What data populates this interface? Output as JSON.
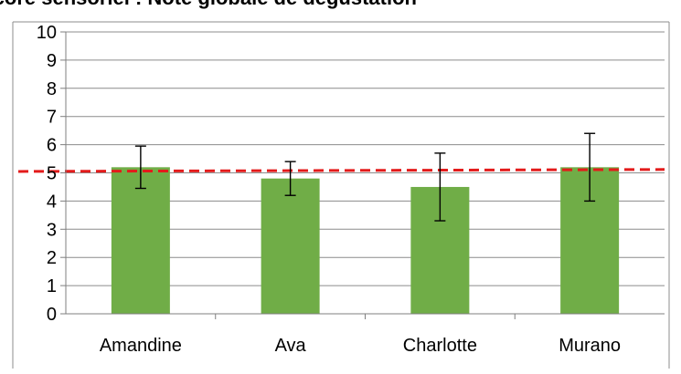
{
  "chart_data": {
    "type": "bar",
    "title": "Score sensoriel : Note globale de dégustation",
    "xlabel": "",
    "ylabel": "",
    "categories": [
      "Amandine",
      "Ava",
      "Charlotte",
      "Murano"
    ],
    "series": [
      {
        "values": [
          5.2,
          4.8,
          4.5,
          5.2
        ],
        "error_low": [
          4.45,
          4.2,
          3.3,
          4.0
        ],
        "error_high": [
          5.95,
          5.4,
          5.7,
          6.4
        ]
      }
    ],
    "reference_line": {
      "start": 5.05,
      "end": 5.12
    },
    "ylim": [
      0,
      10
    ],
    "yticks": [
      "0",
      "1",
      "2",
      "3",
      "4",
      "5",
      "6",
      "7",
      "8",
      "9",
      "10"
    ],
    "grid": true,
    "legend": "none",
    "colors": {
      "bar": "#70AD47",
      "reference_line": "#E31B1B",
      "grid": "#8C8C8C",
      "axis": "#7F7F7F",
      "error_bar": "#000000",
      "text": "#000000"
    }
  }
}
